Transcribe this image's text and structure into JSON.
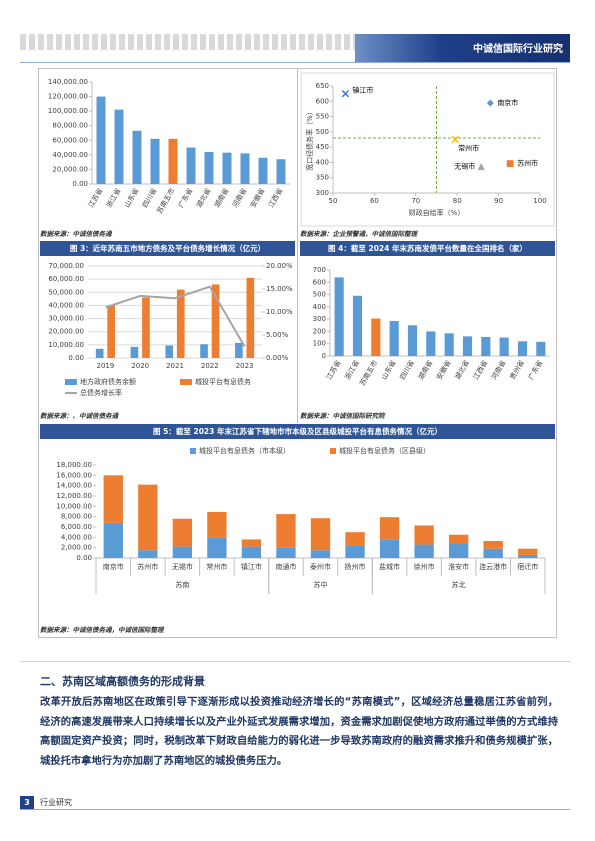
{
  "header": {
    "title": "中诚信国际行业研究"
  },
  "chart_data": [
    {
      "type": "bar",
      "categories": [
        "江苏省",
        "浙江省",
        "山东省",
        "四川省",
        "苏南五市",
        "广东省",
        "湖北省",
        "湖南省",
        "河南省",
        "安徽省",
        "江西省"
      ],
      "values": [
        120000,
        102000,
        73000,
        62000,
        62000,
        50000,
        44000,
        43000,
        42000,
        36000,
        34000
      ],
      "colors": [
        "#5b9bd5",
        "#5b9bd5",
        "#5b9bd5",
        "#5b9bd5",
        "#ed7d31",
        "#5b9bd5",
        "#5b9bd5",
        "#5b9bd5",
        "#5b9bd5",
        "#5b9bd5",
        "#5b9bd5"
      ],
      "ylim": [
        0,
        140000
      ],
      "yticks": [
        {
          "value": 0,
          "label": "0.00"
        },
        {
          "value": 20000,
          "label": "20,000.00"
        },
        {
          "value": 40000,
          "label": "40,000.00"
        },
        {
          "value": 60000,
          "label": "60,000.00"
        },
        {
          "value": 80000,
          "label": "80,000.00"
        },
        {
          "value": 100000,
          "label": "100,000.00"
        },
        {
          "value": 120000,
          "label": "120,000.00"
        },
        {
          "value": 140000,
          "label": "140,000.00"
        }
      ],
      "grid": false,
      "source": "数据来源：中诚信债务通"
    },
    {
      "type": "scatter",
      "x_label": "财政自给率（%）",
      "y_label": "宽口径债务率（%）",
      "xlim": [
        50,
        100
      ],
      "xticks": [
        50,
        60,
        70,
        80,
        90,
        100
      ],
      "ylim": [
        300,
        650
      ],
      "yticks": [
        300,
        350,
        400,
        450,
        500,
        550,
        600,
        650
      ],
      "reference_x": 75,
      "reference_y": 480,
      "reference_color": "#70ad47",
      "series": [
        {
          "name": "镇江市",
          "marker": "x",
          "color": "#4472c4",
          "x": [
            53
          ],
          "values": [
            625
          ]
        },
        {
          "name": "南京市",
          "marker": "diamond",
          "color": "#5b9bd5",
          "x": [
            88
          ],
          "values": [
            594
          ]
        },
        {
          "name": "常州市",
          "marker": "x",
          "color": "#ffc000",
          "x": [
            79.5
          ],
          "values": [
            475
          ]
        },
        {
          "name": "无锡市",
          "marker": "triangle",
          "color": "#a5a5a5",
          "x": [
            85.8
          ],
          "values": [
            386
          ]
        },
        {
          "name": "苏州市",
          "marker": "square",
          "color": "#ed7d31",
          "x": [
            92.8
          ],
          "values": [
            396
          ]
        }
      ],
      "source": "数据来源：企业预警通，中诚信国际整理"
    },
    {
      "type": "combo",
      "title": "图 3：近年苏南五市地方债务及平台债务增长情况（亿元）",
      "categories": [
        "2019",
        "2020",
        "2021",
        "2022",
        "2023"
      ],
      "ylim": [
        0,
        70000
      ],
      "yticks": [
        {
          "value": 0,
          "label": "0.00"
        },
        {
          "value": 10000,
          "label": "10,000.00"
        },
        {
          "value": 20000,
          "label": "20,000.00"
        },
        {
          "value": 30000,
          "label": "30,000.00"
        },
        {
          "value": 40000,
          "label": "40,000.00"
        },
        {
          "value": 50000,
          "label": "50,000.00"
        },
        {
          "value": 60000,
          "label": "60,000.00"
        },
        {
          "value": 70000,
          "label": "70,000.00"
        }
      ],
      "y2lim": [
        0,
        20
      ],
      "y2ticks": [
        {
          "value": 0,
          "label": "0.00%"
        },
        {
          "value": 5,
          "label": "5.00%"
        },
        {
          "value": 10,
          "label": "10.00%"
        },
        {
          "value": 15,
          "label": "15.00%"
        },
        {
          "value": 20,
          "label": "20.00%"
        }
      ],
      "series": [
        {
          "name": "地方政府债务余额",
          "type": "bar",
          "color": "#5b9bd5",
          "values": [
            7000,
            8500,
            9500,
            10500,
            11500
          ]
        },
        {
          "name": "城投平台有息债务",
          "type": "bar",
          "color": "#ed7d31",
          "values": [
            40000,
            46000,
            52000,
            56000,
            61000
          ]
        },
        {
          "name": "总债务增长率",
          "type": "line",
          "axis": "y2",
          "color": "#a5a5a5",
          "values": [
            11,
            13.5,
            13,
            15.5,
            2.5
          ]
        }
      ],
      "source": "数据来源：、中诚信债务通"
    },
    {
      "type": "bar",
      "title": "图 4：截至 2024 年末苏南发债平台数量在全国排名（家）",
      "categories": [
        "江苏省",
        "浙江省",
        "苏南五市",
        "山东省",
        "四川省",
        "湖南省",
        "安徽省",
        "湖北省",
        "江西省",
        "河南省",
        "贵州省",
        "广东省"
      ],
      "values": [
        640,
        490,
        305,
        285,
        250,
        200,
        185,
        160,
        155,
        150,
        120,
        115
      ],
      "colors": [
        "#5b9bd5",
        "#5b9bd5",
        "#ed7d31",
        "#5b9bd5",
        "#5b9bd5",
        "#5b9bd5",
        "#5b9bd5",
        "#5b9bd5",
        "#5b9bd5",
        "#5b9bd5",
        "#5b9bd5",
        "#5b9bd5"
      ],
      "ylim": [
        0,
        700
      ],
      "yticks": [
        0,
        100,
        200,
        300,
        400,
        500,
        600,
        700
      ],
      "grid": false,
      "source": "数据来源：中诚信国际研究院"
    },
    {
      "type": "stacked_bar",
      "title": "图 5：截至 2023 年末江苏省下辖地市市本级及区县级城投平台有息债务情况（亿元）",
      "groups": [
        {
          "name": "苏南",
          "categories": [
            "南京市",
            "苏州市",
            "无锡市",
            "常州市",
            "镇江市"
          ]
        },
        {
          "name": "苏中",
          "categories": [
            "南通市",
            "泰州市",
            "扬州市"
          ]
        },
        {
          "name": "苏北",
          "categories": [
            "盐城市",
            "徐州市",
            "淮安市",
            "连云港市",
            "宿迁市"
          ]
        }
      ],
      "ylim": [
        0,
        18000
      ],
      "yticks": [
        {
          "value": 0,
          "label": "0.00"
        },
        {
          "value": 2000,
          "label": "2,000.00"
        },
        {
          "value": 4000,
          "label": "4,000.00"
        },
        {
          "value": 6000,
          "label": "6,000.00"
        },
        {
          "value": 8000,
          "label": "8,000.00"
        },
        {
          "value": 10000,
          "label": "10,000.00"
        },
        {
          "value": 12000,
          "label": "12,000.00"
        },
        {
          "value": 14000,
          "label": "14,000.00"
        },
        {
          "value": 16000,
          "label": "16,000.00"
        },
        {
          "value": 18000,
          "label": "18,000.00"
        }
      ],
      "series": [
        {
          "name": "城投平台有息债务（市本级）",
          "color": "#5b9bd5",
          "values": [
            6800,
            1500,
            2200,
            4000,
            2200,
            2000,
            1500,
            2400,
            3500,
            2600,
            2800,
            1800,
            600
          ]
        },
        {
          "name": "城投平台有息债务（区县级）",
          "color": "#ed7d31",
          "values": [
            9200,
            12700,
            5400,
            4900,
            1400,
            6500,
            6200,
            2600,
            4400,
            3700,
            1700,
            1500,
            1200
          ]
        }
      ],
      "source": "数据来源：中诚信债务通，中诚信国际整理"
    }
  ],
  "section": {
    "title": "二、苏南区域高额债务的形成背景",
    "paragraph": "改革开放后苏南地区在政策引导下逐渐形成以投资推动经济增长的“苏南模式”，区域经济总量稳居江苏省前列，经济的高速发展带来人口持续增长以及产业外延式发展需求增加，资金需求加剧促使地方政府通过举债的方式维持高额固定资产投资；同时，税制改革下财政自给能力的弱化进一步导致苏南政府的融资需求推升和债务规模扩张，城投托市拿地行为亦加剧了苏南地区的城投债务压力。"
  },
  "footer": {
    "page": "3",
    "label": "行业研究"
  }
}
